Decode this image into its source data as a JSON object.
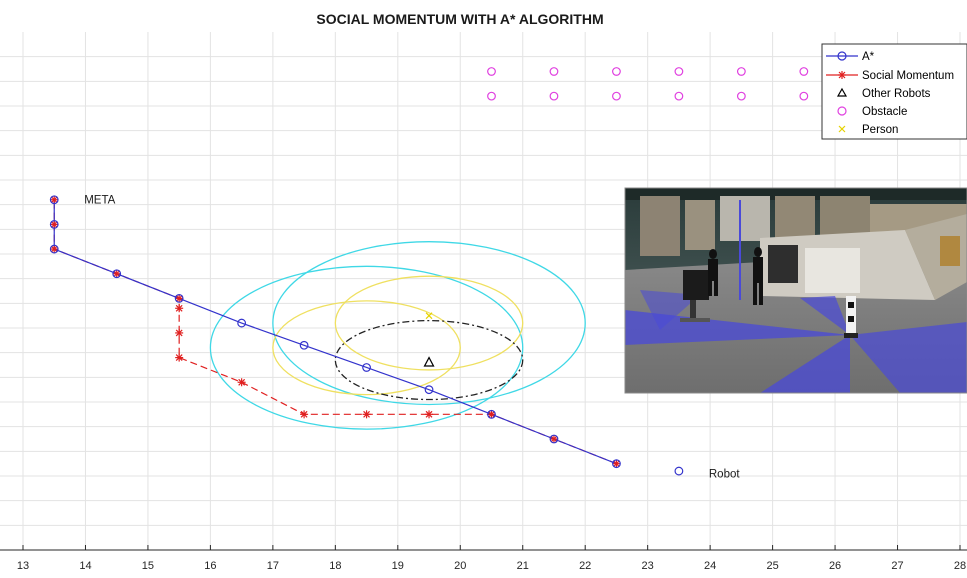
{
  "chart_data": {
    "type": "line",
    "title": "SOCIAL MOMENTUM WITH A* ALGORITHM",
    "xlabel": "",
    "ylabel": "",
    "xlim": [
      13,
      28
    ],
    "ylim": [
      0,
      21
    ],
    "xticks": [
      13,
      14,
      15,
      16,
      17,
      18,
      19,
      20,
      21,
      22,
      23,
      24,
      25,
      26,
      27,
      28
    ],
    "grid": true,
    "legend_position": "top-right",
    "series": [
      {
        "name": "A*",
        "color": "#3333cc",
        "marker": "circle",
        "points": [
          [
            22.5,
            3.5
          ],
          [
            21.5,
            4.5
          ],
          [
            20.5,
            5.5
          ],
          [
            19.5,
            6.5
          ],
          [
            18.5,
            7.4
          ],
          [
            17.5,
            8.3
          ],
          [
            16.5,
            9.2
          ],
          [
            15.5,
            10.2
          ],
          [
            14.5,
            11.2
          ],
          [
            13.5,
            12.2
          ],
          [
            13.5,
            13.2
          ],
          [
            13.5,
            14.2
          ]
        ]
      },
      {
        "name": "Social Momentum",
        "color": "#e02020",
        "marker": "asterisk",
        "points": [
          [
            22.5,
            3.5
          ],
          [
            21.5,
            4.5
          ],
          [
            20.5,
            5.5
          ],
          [
            19.5,
            5.5
          ],
          [
            18.5,
            5.5
          ],
          [
            17.5,
            5.5
          ],
          [
            16.5,
            6.8
          ],
          [
            15.5,
            7.8
          ],
          [
            15.5,
            8.8
          ],
          [
            15.5,
            9.8
          ],
          [
            15.5,
            10.2
          ],
          [
            14.5,
            11.2
          ],
          [
            13.5,
            12.2
          ],
          [
            13.5,
            13.2
          ],
          [
            13.5,
            14.2
          ]
        ]
      },
      {
        "name": "Other Robots",
        "color": "#000000",
        "marker": "triangle",
        "points": [
          [
            19.5,
            7.6
          ]
        ]
      },
      {
        "name": "Obstacle",
        "color": "#e040e0",
        "marker": "circle",
        "points": [
          [
            20.5,
            19.4
          ],
          [
            21.5,
            19.4
          ],
          [
            22.5,
            19.4
          ],
          [
            23.5,
            19.4
          ],
          [
            24.5,
            19.4
          ],
          [
            25.5,
            19.4
          ],
          [
            20.5,
            18.4
          ],
          [
            21.5,
            18.4
          ],
          [
            22.5,
            18.4
          ],
          [
            23.5,
            18.4
          ],
          [
            24.5,
            18.4
          ],
          [
            25.5,
            18.4
          ]
        ]
      },
      {
        "name": "Person",
        "color": "#e6d200",
        "marker": "x",
        "points": [
          [
            19.5,
            9.5
          ]
        ]
      }
    ],
    "ellipses": [
      {
        "color": "#3fd8e6",
        "style": "solid",
        "cx": 18.5,
        "cy": 8.2,
        "rx": 2.5,
        "ry": 3.3
      },
      {
        "color": "#3fd8e6",
        "style": "solid",
        "cx": 19.5,
        "cy": 9.2,
        "rx": 2.5,
        "ry": 3.3
      },
      {
        "color": "#efe060",
        "style": "solid",
        "cx": 18.5,
        "cy": 8.2,
        "rx": 1.5,
        "ry": 1.9
      },
      {
        "color": "#efe060",
        "style": "solid",
        "cx": 19.5,
        "cy": 9.2,
        "rx": 1.5,
        "ry": 1.9
      },
      {
        "color": "#222222",
        "style": "dashdot",
        "cx": 19.5,
        "cy": 7.7,
        "rx": 1.5,
        "ry": 1.6
      }
    ],
    "robot_marker": {
      "x": 23.5,
      "y": 3.2,
      "color": "#3333cc"
    },
    "annotations": [
      {
        "text": "META",
        "x": 13.98,
        "y": 14.2
      },
      {
        "text": "Robot",
        "x": 23.98,
        "y": 3.1
      }
    ]
  }
}
